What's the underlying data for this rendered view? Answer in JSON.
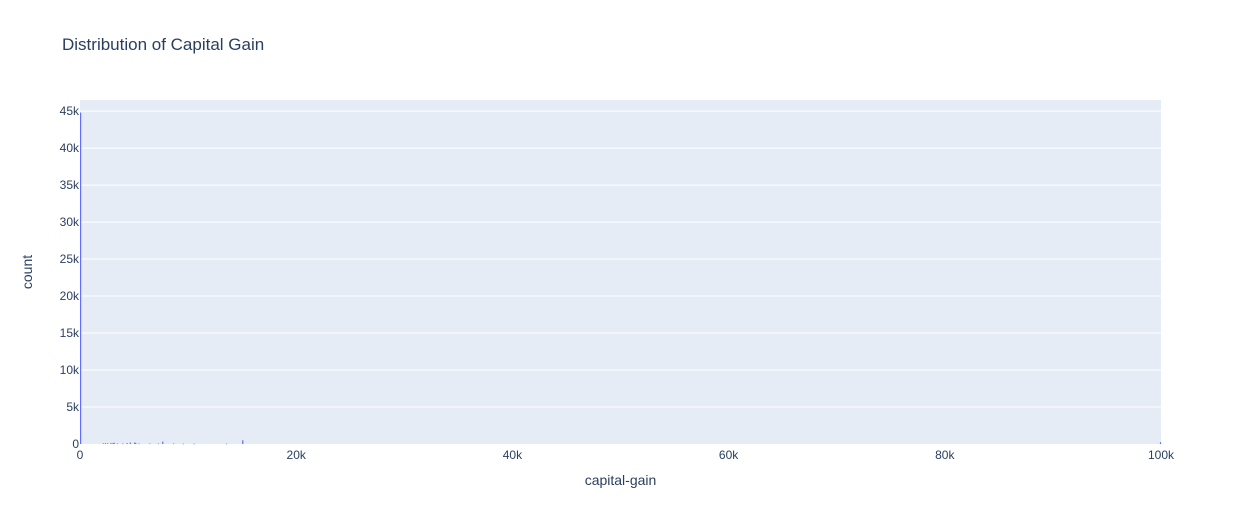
{
  "chart_data": {
    "type": "bar",
    "title": "Distribution of Capital Gain",
    "xlabel": "capital-gain",
    "ylabel": "count",
    "xlim": [
      0,
      100000
    ],
    "ylim": [
      0,
      46500
    ],
    "x_ticks": [
      0,
      20000,
      40000,
      60000,
      80000,
      100000
    ],
    "x_tick_labels": [
      "0",
      "20k",
      "40k",
      "60k",
      "80k",
      "100k"
    ],
    "y_ticks": [
      0,
      5000,
      10000,
      15000,
      20000,
      25000,
      30000,
      35000,
      40000,
      45000
    ],
    "y_tick_labels": [
      "0",
      "5k",
      "10k",
      "15k",
      "20k",
      "25k",
      "30k",
      "35k",
      "40k",
      "45k"
    ],
    "grid": true,
    "bin_width": 100,
    "bins": [
      {
        "x": 50,
        "count": 44800
      },
      {
        "x": 2150,
        "count": 90
      },
      {
        "x": 2350,
        "count": 110
      },
      {
        "x": 2550,
        "count": 90
      },
      {
        "x": 2850,
        "count": 140
      },
      {
        "x": 3050,
        "count": 120
      },
      {
        "x": 3150,
        "count": 180
      },
      {
        "x": 3450,
        "count": 70
      },
      {
        "x": 3950,
        "count": 60
      },
      {
        "x": 4350,
        "count": 130
      },
      {
        "x": 4650,
        "count": 200
      },
      {
        "x": 5050,
        "count": 190
      },
      {
        "x": 5150,
        "count": 150
      },
      {
        "x": 5450,
        "count": 60
      },
      {
        "x": 6450,
        "count": 70
      },
      {
        "x": 7250,
        "count": 60
      },
      {
        "x": 7650,
        "count": 330
      },
      {
        "x": 8650,
        "count": 70
      },
      {
        "x": 9550,
        "count": 40
      },
      {
        "x": 10550,
        "count": 40
      },
      {
        "x": 13550,
        "count": 50
      },
      {
        "x": 15050,
        "count": 510
      },
      {
        "x": 99950,
        "count": 240
      }
    ],
    "colors": {
      "bar": "#636efa",
      "plot_bg": "#e5ecf6",
      "grid": "#ffffff",
      "text": "#2a3f5f"
    }
  }
}
